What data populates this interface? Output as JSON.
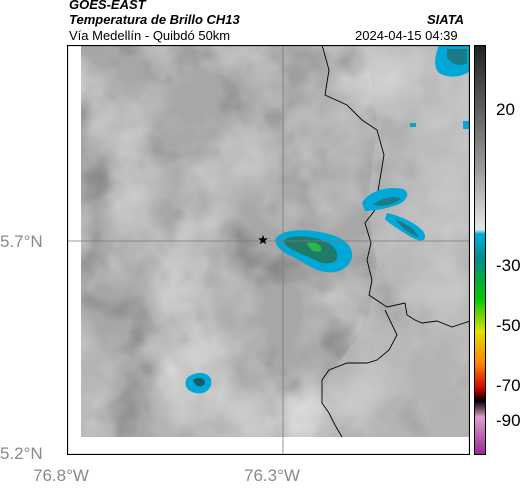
{
  "header": {
    "satellite": "GOES-EAST",
    "product": "Temperatura de Brillo CH13",
    "org": "SIATA",
    "region": "Vía Medellín - Quibdó 50km",
    "datetime": "2024-04-15 04:39"
  },
  "axes": {
    "lat_ticks": [
      "5.7°N",
      "5.2°N"
    ],
    "lon_ticks": [
      "76.8°W",
      "76.3°W"
    ]
  },
  "colorbar": {
    "ticks": [
      "20",
      "-30",
      "-50",
      "-70",
      "-90"
    ],
    "colors": [
      "#222222",
      "#9a9a9a",
      "#e6e6e6",
      "#00b0e0",
      "#008a8a",
      "#00c800",
      "#e0e000",
      "#ff8000",
      "#cc0000",
      "#000000",
      "#d8a0c8",
      "#9a2a9a"
    ]
  },
  "map": {
    "marker": "star-icon",
    "background_color": "#a9a9a9",
    "cloud_color": "#00a8d8",
    "cloud_core_color": "#1f7a6a"
  }
}
